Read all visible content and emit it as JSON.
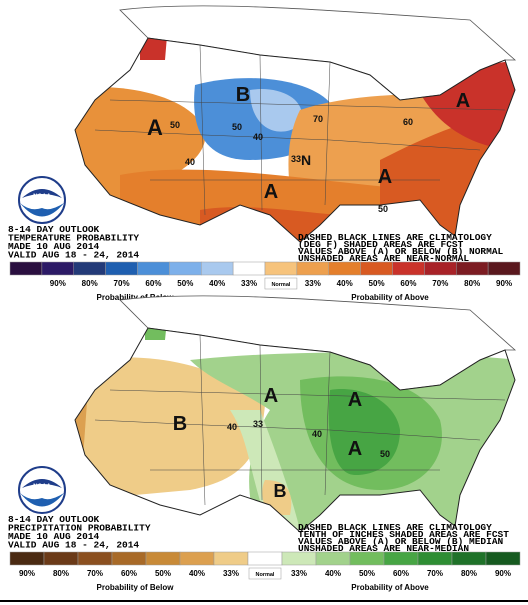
{
  "panels": [
    {
      "logo": "NOAA",
      "outlook_lines": [
        "8-14 DAY OUTLOOK",
        "TEMPERATURE PROBABILITY",
        "MADE  10 AUG 2014",
        "VALID  AUG 18 - 24, 2014"
      ],
      "notes": [
        "DASHED BLACK LINES ARE CLIMATOLOGY",
        "(DEG F) SHADED AREAS ARE FCST",
        "VALUES ABOVE (A) OR BELOW (B) NORMAL",
        "UNSHADED AREAS ARE NEAR-NORMAL"
      ],
      "map_labels": [
        "A",
        "B",
        "A",
        "A",
        "A",
        "N",
        "50",
        "40",
        "50",
        "40",
        "33",
        "70",
        "60",
        "50"
      ],
      "legend": {
        "swatches": [
          "#2a0f40",
          "#2c1a66",
          "#233a78",
          "#1f5fb0",
          "#4c8fd8",
          "#7db0ea",
          "#a9c9ee",
          "#ffffff",
          "#f6c37c",
          "#eda04f",
          "#e47f2c",
          "#d85a22",
          "#c9322a",
          "#a82228",
          "#7c1c22",
          "#5a181e"
        ],
        "labels": [
          "90%",
          "80%",
          "70%",
          "60%",
          "50%",
          "40%",
          "33%",
          "33%",
          "40%",
          "50%",
          "60%",
          "70%",
          "80%",
          "90%"
        ],
        "normal": "Normal",
        "below_title": "Probability of Below",
        "above_title": "Probability of Above"
      }
    },
    {
      "logo": "NOAA",
      "outlook_lines": [
        "8-14 DAY OUTLOOK",
        "PRECIPITATION PROBABILITY",
        "MADE  10 AUG 2014",
        "VALID  AUG 18 - 24, 2014"
      ],
      "notes": [
        "DASHED BLACK LINES ARE CLIMATOLOGY",
        "TENTH OF INCHES SHADED AREAS ARE FCST",
        "VALUES ABOVE (A) OR BELOW (B) MEDIAN",
        "UNSHADED AREAS ARE NEAR-MEDIAN"
      ],
      "map_labels": [
        "A",
        "B",
        "A",
        "A",
        "B",
        "40",
        "33",
        "40",
        "50"
      ],
      "legend": {
        "swatches": [
          "#4a2a12",
          "#6b3a18",
          "#8b5020",
          "#a86a28",
          "#c88a38",
          "#dca050",
          "#efcc88",
          "#ffffff",
          "#cde8b8",
          "#a2d28c",
          "#72bd5e",
          "#47a544",
          "#2e8d33",
          "#1f7229",
          "#165a20"
        ],
        "labels": [
          "90%",
          "80%",
          "70%",
          "60%",
          "50%",
          "40%",
          "33%",
          "33%",
          "40%",
          "50%",
          "60%",
          "70%",
          "80%",
          "90%"
        ],
        "normal": "Normal",
        "below_title": "Probability of Below",
        "above_title": "Probability of Above"
      }
    }
  ]
}
